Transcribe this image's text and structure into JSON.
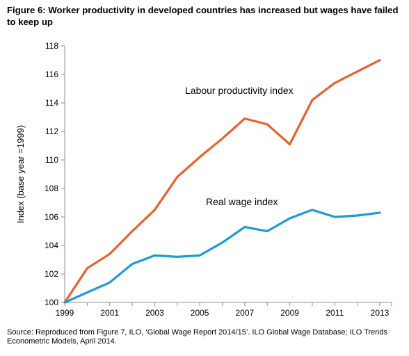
{
  "title": "Figure 6: Worker productivity in developed countries has increased but wages have failed to keep up",
  "source": "Source: Reproduced from Figure 7, ILO, ‘Global Wage Report 2014/15’. ILO Global Wage Database; ILO Trends Econometric Models, April 2014.",
  "chart_data": {
    "type": "line",
    "title": "Figure 6: Worker productivity in developed countries has increased but wages have failed to keep up",
    "xlabel": "",
    "ylabel": "Index (base year =1999)",
    "x": [
      1999,
      2000,
      2001,
      2002,
      2003,
      2004,
      2005,
      2006,
      2007,
      2008,
      2009,
      2010,
      2011,
      2012,
      2013
    ],
    "x_tick_labels": [
      "1999",
      "2001",
      "2003",
      "2005",
      "2007",
      "2009",
      "2011",
      "2013"
    ],
    "y_ticks": [
      100,
      102,
      104,
      106,
      108,
      110,
      112,
      114,
      116,
      118
    ],
    "ylim": [
      100,
      118
    ],
    "xlim": [
      1999,
      2013
    ],
    "grid": false,
    "legend": "none",
    "series": [
      {
        "name": "Labour productivity index",
        "color": "#E8612C",
        "values": [
          100,
          102.4,
          103.4,
          105.0,
          106.5,
          108.8,
          110.2,
          111.5,
          112.9,
          112.5,
          111.1,
          114.2,
          115.4,
          116.2,
          117.0
        ]
      },
      {
        "name": "Real wage index",
        "color": "#1B9BD7",
        "values": [
          100,
          100.7,
          101.4,
          102.7,
          103.3,
          103.2,
          103.3,
          104.2,
          105.3,
          105.0,
          105.9,
          106.5,
          106.0,
          106.1,
          106.3
        ]
      }
    ]
  }
}
